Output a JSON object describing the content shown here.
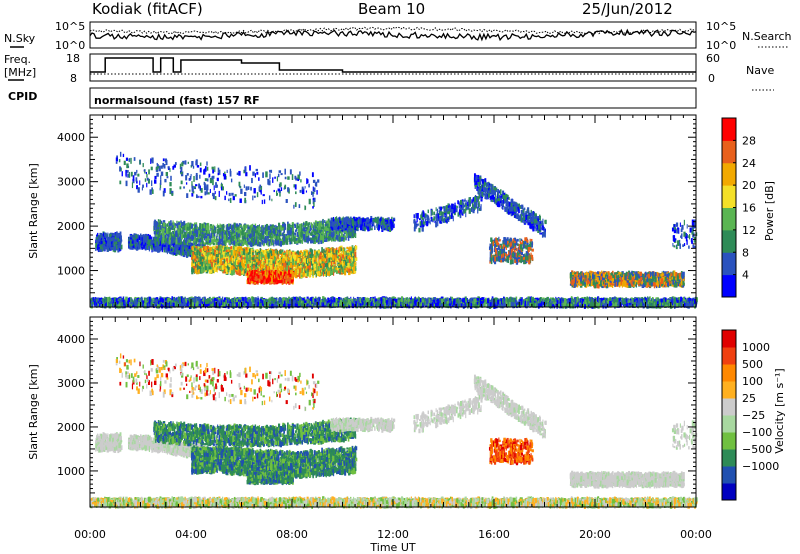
{
  "header": {
    "station": "Kodiak (fitACF)",
    "beam": "Beam 10",
    "date": "25/Jun/2012"
  },
  "noise_panel": {
    "left_label": "N.Sky",
    "right_label": "N.Search",
    "left_ticks": [
      "10^5",
      "10^0"
    ],
    "right_ticks": [
      "10^5",
      "10^0"
    ]
  },
  "freq_panel": {
    "left_label_line1": "Freq.",
    "left_label_line2": "[MHz]",
    "right_label": "Nave",
    "left_ticks": [
      "18",
      "8"
    ],
    "right_ticks": [
      "60",
      "0"
    ]
  },
  "cpid_panel": {
    "label": "CPID",
    "text": "normalsound (fast) 157 RF"
  },
  "colors": {
    "power_scale": [
      "#0000ff",
      "#2a52be",
      "#2e8b57",
      "#5ab552",
      "#f4e028",
      "#f2a900",
      "#e8601c",
      "#ff0000"
    ],
    "velocity_scale": [
      "#e00000",
      "#f04010",
      "#ff8800",
      "#ffb020",
      "#cccccc",
      "#a8d8a0",
      "#70c040",
      "#2e8b57",
      "#2050b0",
      "#0000c0"
    ]
  },
  "chart_data": [
    {
      "type": "heatmap",
      "title": "Power",
      "xlabel": "Time UT",
      "ylabel": "Slant Range [km]",
      "xlim": [
        0,
        24
      ],
      "ylim": [
        180,
        4500
      ],
      "x_tick_labels": [
        "00:00",
        "04:00",
        "08:00",
        "12:00",
        "16:00",
        "20:00",
        "00:00"
      ],
      "y_tick_labels": [
        "1000",
        "2000",
        "3000",
        "4000"
      ],
      "colorbar": {
        "label": "Power [dB]",
        "range": [
          0,
          32
        ],
        "tick_labels": [
          "4",
          "8",
          "12",
          "16",
          "20",
          "24",
          "28"
        ]
      }
    },
    {
      "type": "heatmap",
      "title": "Velocity",
      "xlabel": "Time UT",
      "ylabel": "Slant Range [km]",
      "xlim": [
        0,
        24
      ],
      "ylim": [
        180,
        4500
      ],
      "x_tick_labels": [
        "00:00",
        "04:00",
        "08:00",
        "12:00",
        "16:00",
        "20:00",
        "00:00"
      ],
      "y_tick_labels": [
        "1000",
        "2000",
        "3000",
        "4000"
      ],
      "colorbar": {
        "label": "Velocity [m s⁻¹]",
        "tick_labels": [
          "1000",
          "500",
          "100",
          "25",
          "−25",
          "−100",
          "−500",
          "−1000"
        ]
      }
    }
  ]
}
